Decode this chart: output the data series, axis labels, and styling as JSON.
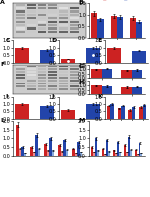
{
  "background": "#ffffff",
  "red": "#cc2222",
  "blue": "#2244aa",
  "light_red": "#ee8888",
  "light_blue": "#88aadd",
  "wb_bg": "#cccccc",
  "wb_band_dark": "#555555",
  "wb_band_light": "#dddddd",
  "panels": {
    "A": {
      "label": "A",
      "type": "wb",
      "n_lanes": 6,
      "n_bands": 9
    },
    "B": {
      "label": "B",
      "type": "bar3",
      "red_vals": [
        1.05,
        0.95,
        0.85
      ],
      "blue_vals": [
        0.8,
        0.9,
        0.7
      ],
      "ylim": [
        0,
        1.5
      ],
      "yticks": [
        0,
        0.5,
        1.0,
        1.5
      ]
    },
    "C": {
      "label": "C",
      "type": "bar1",
      "red_vals": [
        1.0
      ],
      "blue_vals": [
        0.85
      ],
      "ylim": [
        0,
        1.5
      ],
      "yticks": [
        0,
        0.5,
        1.0,
        1.5
      ]
    },
    "D": {
      "label": "D",
      "type": "bar1",
      "red_vals": [
        0.25
      ],
      "blue_vals": [
        1.0
      ],
      "ylim": [
        0,
        1.5
      ],
      "yticks": [
        0,
        0.5,
        1.0,
        1.5
      ]
    },
    "E": {
      "label": "E",
      "type": "bar1",
      "red_vals": [
        1.0
      ],
      "blue_vals": [
        0.8
      ],
      "ylim": [
        0,
        1.5
      ],
      "yticks": [
        0,
        0.5,
        1.0,
        1.5
      ]
    },
    "F": {
      "label": "F",
      "type": "wb",
      "n_lanes": 6,
      "n_bands": 9
    },
    "G": {
      "label": "G",
      "type": "bar2",
      "red_vals": [
        1.0,
        0.9
      ],
      "blue_vals": [
        1.1,
        0.95
      ],
      "ylim": [
        0,
        1.5
      ],
      "yticks": [
        0,
        0.5,
        1.0,
        1.5
      ]
    },
    "H": {
      "label": "H",
      "type": "bar2",
      "red_vals": [
        1.0,
        0.8
      ],
      "blue_vals": [
        0.9,
        0.85
      ],
      "ylim": [
        0,
        1.5
      ],
      "yticks": [
        0,
        0.5,
        1.0,
        1.5
      ]
    },
    "I": {
      "label": "I",
      "type": "bar1",
      "red_vals": [
        1.0
      ],
      "blue_vals": [
        0.85
      ],
      "ylim": [
        0,
        1.5
      ],
      "yticks": [
        0,
        0.5,
        1.0,
        1.5
      ]
    },
    "J": {
      "label": "J",
      "type": "bar1",
      "red_vals": [
        0.6
      ],
      "blue_vals": [
        1.0
      ],
      "ylim": [
        0,
        1.5
      ],
      "yticks": [
        0,
        0.5,
        1.0,
        1.5
      ]
    },
    "K": {
      "label": "K",
      "type": "bar4",
      "red_vals": [
        0.9,
        0.7,
        0.6,
        0.8
      ],
      "blue_vals": [
        1.0,
        0.9,
        0.8,
        0.95
      ],
      "ylim": [
        0,
        1.5
      ],
      "yticks": [
        0,
        0.5,
        1.0,
        1.5
      ]
    },
    "L": {
      "label": "L",
      "type": "multibar",
      "n_groups": 5,
      "series": [
        {
          "vals": [
            1.8,
            0.5,
            0.7,
            0.6,
            0.4
          ],
          "color": "#cc2222"
        },
        {
          "vals": [
            0.4,
            0.2,
            0.3,
            0.25,
            0.15
          ],
          "color": "#ee8888"
        },
        {
          "vals": [
            0.5,
            1.2,
            1.0,
            0.9,
            0.8
          ],
          "color": "#2244aa"
        },
        {
          "vals": [
            0.15,
            0.4,
            0.3,
            0.35,
            0.2
          ],
          "color": "#88aadd"
        }
      ],
      "ylim": [
        0,
        2.0
      ],
      "yticks": [
        0,
        0.5,
        1.0,
        1.5,
        2.0
      ]
    },
    "M": {
      "label": "M",
      "type": "multibar",
      "n_groups": 5,
      "series": [
        {
          "vals": [
            0.5,
            0.4,
            0.3,
            0.6,
            0.35
          ],
          "color": "#cc2222"
        },
        {
          "vals": [
            0.2,
            0.1,
            0.15,
            0.2,
            0.1
          ],
          "color": "#ee8888"
        },
        {
          "vals": [
            1.0,
            0.9,
            0.8,
            1.1,
            0.75
          ],
          "color": "#2244aa"
        },
        {
          "vals": [
            0.3,
            0.25,
            0.2,
            0.35,
            0.15
          ],
          "color": "#88aadd"
        }
      ],
      "ylim": [
        0,
        2.0
      ],
      "yticks": [
        0,
        0.5,
        1.0,
        1.5,
        2.0
      ]
    }
  }
}
